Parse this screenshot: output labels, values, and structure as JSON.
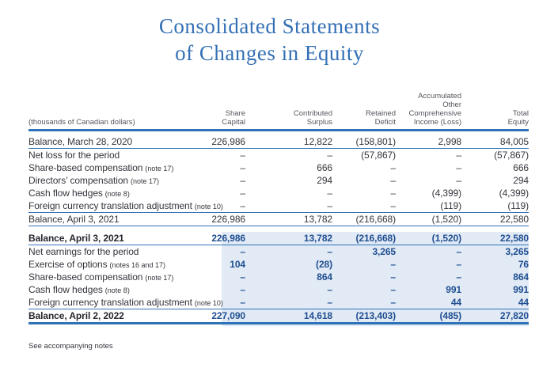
{
  "title": {
    "line1": "Consolidated Statements",
    "line2": "of Changes in Equity"
  },
  "table": {
    "unit_label": "(thousands of Canadian dollars)",
    "columns": [
      "Share\nCapital",
      "Contributed\nSurplus",
      "Retained\nDeficit",
      "Accumulated\nOther\nComprehensive\nIncome (Loss)",
      "Total\nEquity"
    ],
    "sections": [
      {
        "rows": [
          {
            "label": "Balance, March 28, 2020",
            "values": [
              "226,986",
              "12,822",
              "(158,801)",
              "2,998",
              "84,005"
            ]
          },
          {
            "label": "Net loss for the period",
            "values": [
              "–",
              "–",
              "(57,867)",
              "–",
              "(57,867)"
            ]
          },
          {
            "label": "Share-based compensation",
            "note": "(note 17)",
            "values": [
              "–",
              "666",
              "–",
              "–",
              "666"
            ]
          },
          {
            "label": "Directors’ compensation",
            "note": "(note 17)",
            "values": [
              "–",
              "294",
              "–",
              "–",
              "294"
            ]
          },
          {
            "label": "Cash flow hedges",
            "note": "(note 8)",
            "values": [
              "–",
              "–",
              "–",
              "(4,399)",
              "(4,399)"
            ]
          },
          {
            "label": "Foreign currency translation adjustment",
            "note": "(note 10)",
            "values": [
              "–",
              "–",
              "–",
              "(119)",
              "(119)"
            ]
          },
          {
            "label": "Balance, April 3, 2021",
            "values": [
              "226,986",
              "13,782",
              "(216,668)",
              "(1,520)",
              "22,580"
            ]
          }
        ]
      },
      {
        "rows": [
          {
            "label": "Balance, April 3, 2021",
            "values": [
              "226,986",
              "13,782",
              "(216,668)",
              "(1,520)",
              "22,580"
            ]
          },
          {
            "label": "Net earnings for the period",
            "values": [
              "–",
              "–",
              "3,265",
              "–",
              "3,265"
            ]
          },
          {
            "label": "Exercise of options",
            "note": "(notes 16 and 17)",
            "values": [
              "104",
              "(28)",
              "–",
              "–",
              "76"
            ]
          },
          {
            "label": "Share-based compensation",
            "note": "(note 17)",
            "values": [
              "–",
              "864",
              "–",
              "–",
              "864"
            ]
          },
          {
            "label": "Cash flow hedges",
            "note": "(note 8)",
            "values": [
              "–",
              "–",
              "–",
              "991",
              "991"
            ]
          },
          {
            "label": "Foreign currency translation adjustment",
            "note": "(note 10)",
            "values": [
              "–",
              "–",
              "–",
              "44",
              "44"
            ]
          },
          {
            "label": "Balance, April 2, 2022",
            "values": [
              "227,090",
              "14,618",
              "(213,403)",
              "(485)",
              "27,820"
            ]
          }
        ]
      }
    ]
  },
  "footer": {
    "note": "See accompanying notes"
  },
  "colors": {
    "accent_blue": "#2e73b8",
    "title_blue": "#3470b5",
    "highlight": "#e1eaf5",
    "value_blue": "#1f4e91",
    "text_dark": "#35353d",
    "text_gray": "#55565e"
  }
}
